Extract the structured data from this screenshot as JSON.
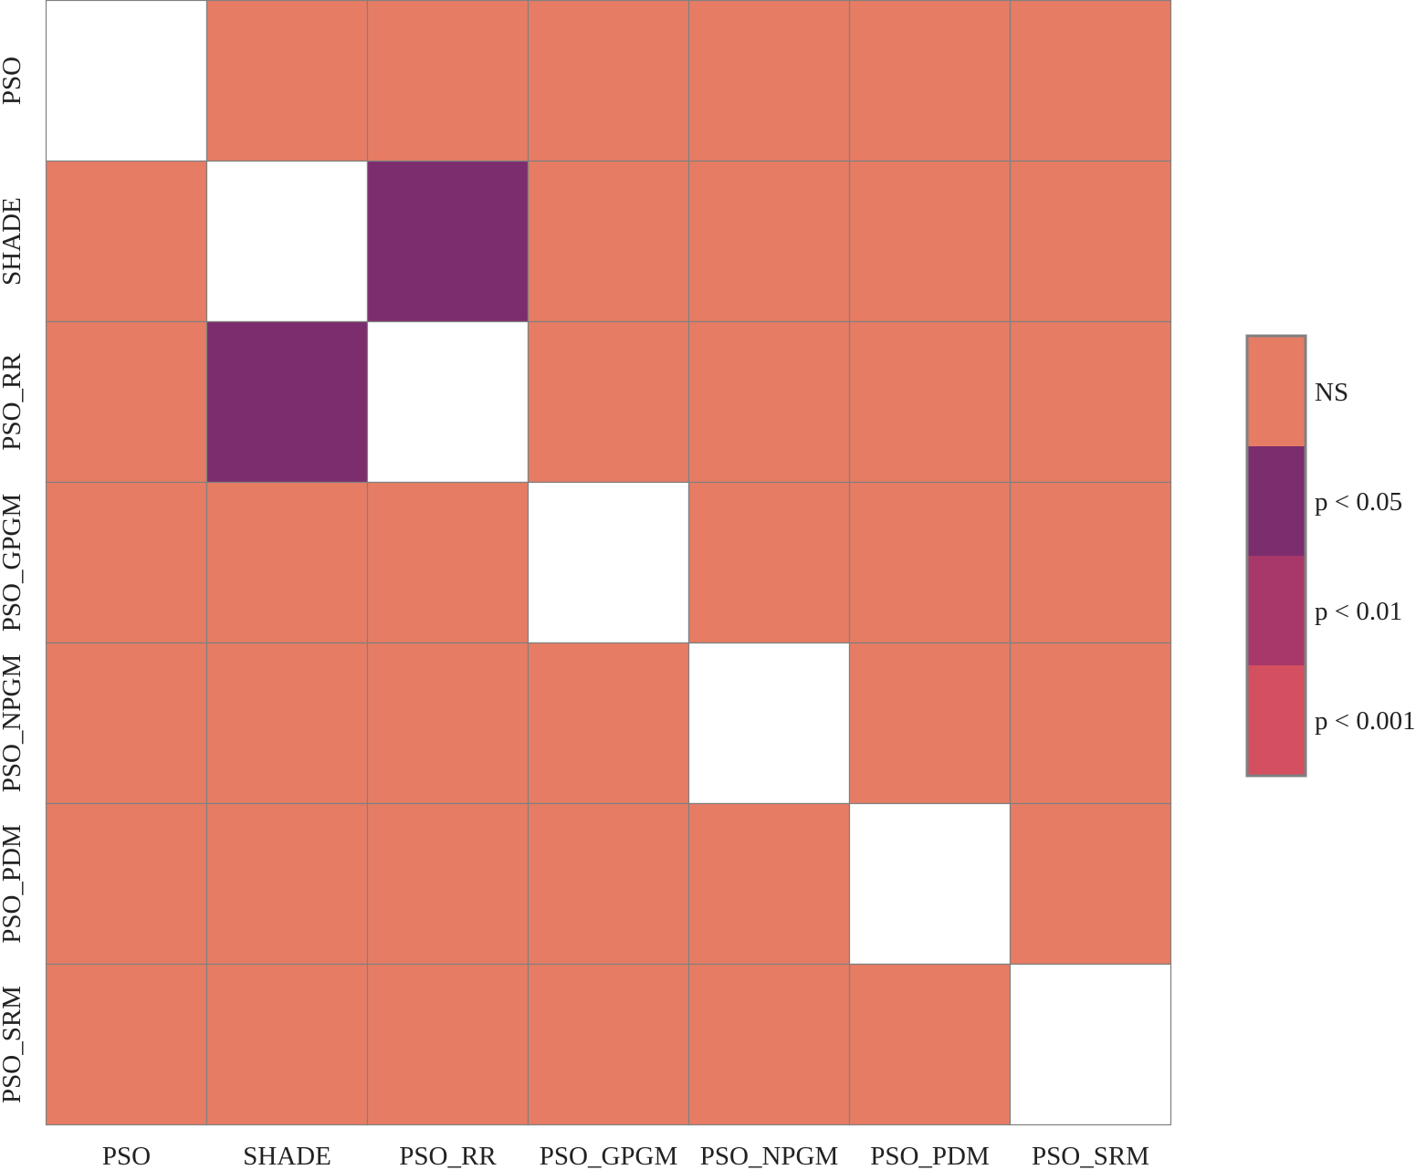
{
  "chart_data": {
    "type": "heatmap",
    "title": "",
    "xlabel": "",
    "ylabel": "",
    "x_categories": [
      "PSO",
      "SHADE",
      "PSO_RR",
      "PSO_GPGM",
      "PSO_NPGM",
      "PSO_PDM",
      "PSO_SRM"
    ],
    "y_categories": [
      "PSO",
      "SHADE",
      "PSO_RR",
      "PSO_GPGM",
      "PSO_NPGM",
      "PSO_PDM",
      "PSO_SRM"
    ],
    "diagonal": "blank",
    "values": [
      [
        null,
        "NS",
        "NS",
        "NS",
        "NS",
        "NS",
        "NS"
      ],
      [
        "NS",
        null,
        "p < 0.05",
        "NS",
        "NS",
        "NS",
        "NS"
      ],
      [
        "NS",
        "p < 0.05",
        null,
        "NS",
        "NS",
        "NS",
        "NS"
      ],
      [
        "NS",
        "NS",
        "NS",
        null,
        "NS",
        "NS",
        "NS"
      ],
      [
        "NS",
        "NS",
        "NS",
        "NS",
        null,
        "NS",
        "NS"
      ],
      [
        "NS",
        "NS",
        "NS",
        "NS",
        "NS",
        null,
        "NS"
      ],
      [
        "NS",
        "NS",
        "NS",
        "NS",
        "NS",
        "NS",
        null
      ]
    ],
    "legend": {
      "position": "right",
      "entries": [
        {
          "label": "NS",
          "color": "#e67c63"
        },
        {
          "label": "p < 0.05",
          "color": "#7c2d6d"
        },
        {
          "label": "p < 0.01",
          "color": "#a8386a"
        },
        {
          "label": "p < 0.001",
          "color": "#d44f5f"
        }
      ]
    },
    "colors": {
      "empty": "#ffffff",
      "grid": "#808080"
    }
  }
}
